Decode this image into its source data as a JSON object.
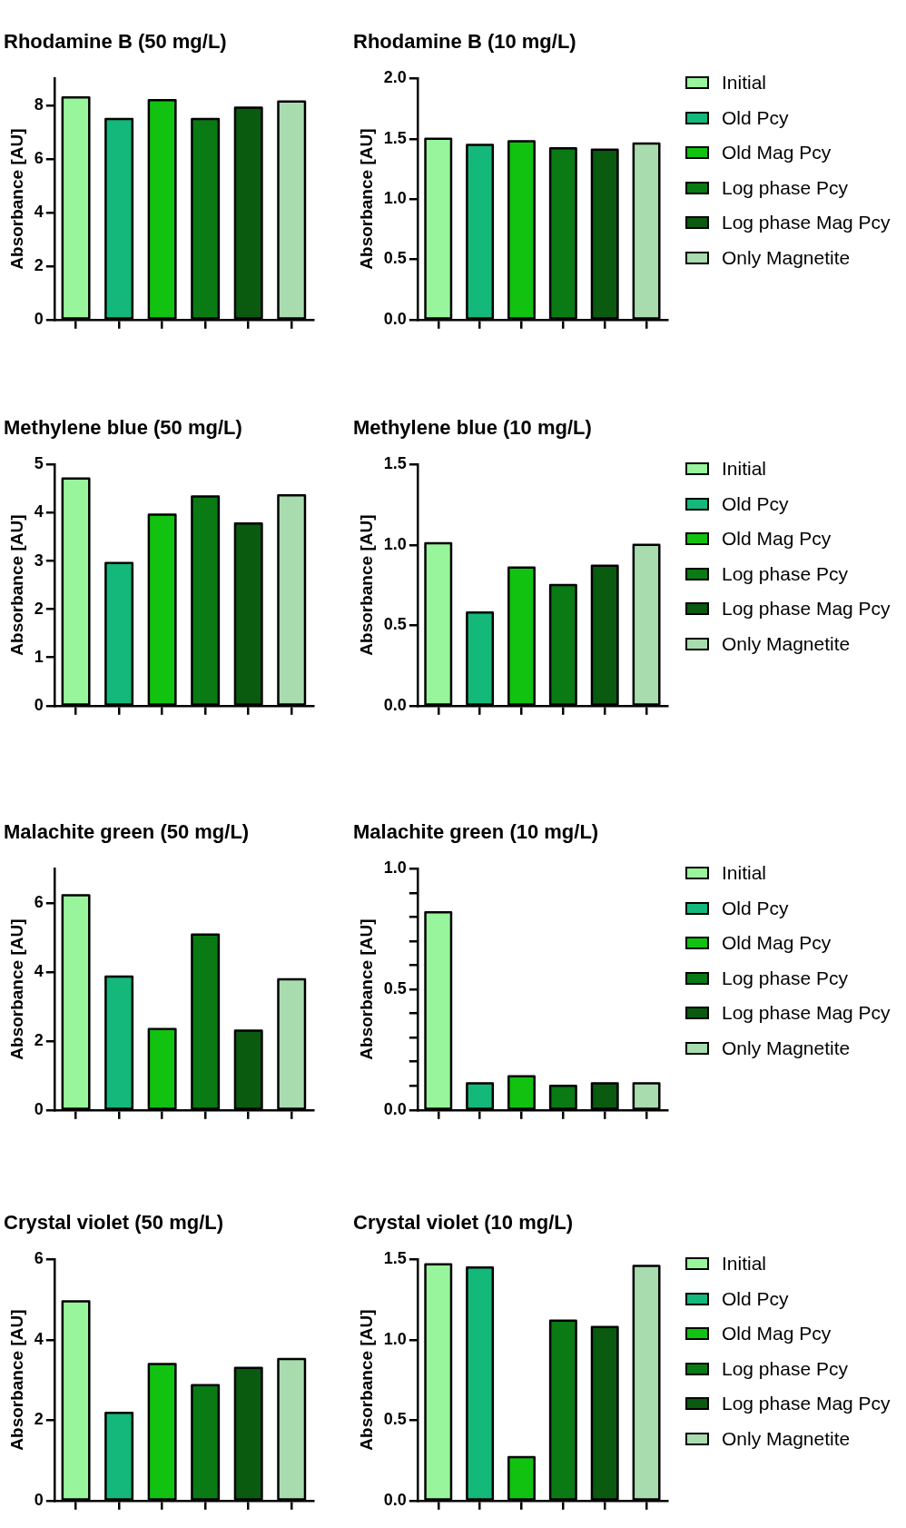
{
  "chart_data": [
    {
      "type": "bar",
      "title": "Rhodamine B (50 mg/L)",
      "ylabel": "Absorbance [AU]",
      "categories": [
        null,
        null,
        null,
        null,
        null,
        null
      ],
      "ylim": [
        0,
        9
      ],
      "yticks": [
        0,
        2,
        4,
        6,
        8
      ],
      "legend": false,
      "grid": false,
      "series": [
        {
          "color": "#99f59b",
          "values": [
            8.29,
            null,
            null,
            null,
            null,
            null
          ]
        },
        {
          "color": "#14b87a",
          "values": [
            null,
            7.49,
            null,
            null,
            null,
            null
          ]
        },
        {
          "color": "#11c211",
          "values": [
            null,
            null,
            8.19,
            null,
            null,
            null
          ]
        },
        {
          "color": "#0a7a14",
          "values": [
            null,
            null,
            null,
            7.49,
            null,
            null
          ]
        },
        {
          "color": "#0a5a10",
          "values": [
            null,
            null,
            null,
            null,
            7.91,
            null
          ]
        },
        {
          "color": "#a8dcae",
          "values": [
            null,
            null,
            null,
            null,
            null,
            8.14
          ]
        }
      ]
    },
    {
      "type": "bar",
      "title": "Rhodamine B (10 mg/L)",
      "ylabel": "Absorbance [AU]",
      "categories": [
        null,
        null,
        null,
        null,
        null,
        null
      ],
      "ylim": [
        0,
        2
      ],
      "yticks": [
        {
          "value": 0,
          "label": "0.0"
        },
        0.5,
        {
          "value": 1,
          "label": "1.0"
        },
        1.5,
        {
          "value": 2,
          "label": "2.0"
        }
      ],
      "legend": "right",
      "grid": false,
      "series": [
        {
          "name": "Initial",
          "color": "#99f59b",
          "values": [
            1.5,
            null,
            null,
            null,
            null,
            null
          ]
        },
        {
          "name": "Old Pcy",
          "color": "#14b87a",
          "values": [
            null,
            1.45,
            null,
            null,
            null,
            null
          ]
        },
        {
          "name": "Old Mag Pcy",
          "color": "#11c211",
          "values": [
            null,
            null,
            1.48,
            null,
            null,
            null
          ]
        },
        {
          "name": "Log phase Pcy",
          "color": "#0a7a14",
          "values": [
            null,
            null,
            null,
            1.42,
            null,
            null
          ]
        },
        {
          "name": "Log phase Mag Pcy",
          "color": "#0a5a10",
          "values": [
            null,
            null,
            null,
            null,
            1.41,
            null
          ]
        },
        {
          "name": "Only Magnetite",
          "color": "#a8dcae",
          "values": [
            null,
            null,
            null,
            null,
            null,
            1.46
          ]
        }
      ]
    },
    {
      "type": "bar",
      "title": "Methylene blue (50 mg/L)",
      "ylabel": "Absorbance [AU]",
      "categories": [
        null,
        null,
        null,
        null,
        null,
        null
      ],
      "ylim": [
        0,
        5
      ],
      "yticks": [
        0,
        1,
        2,
        3,
        4,
        5
      ],
      "legend": false,
      "grid": false,
      "series": [
        {
          "color": "#99f59b",
          "values": [
            4.71,
            null,
            null,
            null,
            null,
            null
          ]
        },
        {
          "color": "#14b87a",
          "values": [
            null,
            2.96,
            null,
            null,
            null,
            null
          ]
        },
        {
          "color": "#11c211",
          "values": [
            null,
            null,
            3.96,
            null,
            null,
            null
          ]
        },
        {
          "color": "#0a7a14",
          "values": [
            null,
            null,
            null,
            4.34,
            null,
            null
          ]
        },
        {
          "color": "#0a5a10",
          "values": [
            null,
            null,
            null,
            null,
            3.78,
            null
          ]
        },
        {
          "color": "#a8dcae",
          "values": [
            null,
            null,
            null,
            null,
            null,
            4.36
          ]
        }
      ]
    },
    {
      "type": "bar",
      "title": "Methylene blue (10 mg/L)",
      "ylabel": "Absorbance [AU]",
      "categories": [
        null,
        null,
        null,
        null,
        null,
        null
      ],
      "ylim": [
        0,
        1.5
      ],
      "yticks": [
        {
          "value": 0,
          "label": "0.0"
        },
        0.5,
        {
          "value": 1,
          "label": "1.0"
        },
        1.5
      ],
      "legend": "right",
      "grid": false,
      "series": [
        {
          "name": "Initial",
          "color": "#99f59b",
          "values": [
            1.01,
            null,
            null,
            null,
            null,
            null
          ]
        },
        {
          "name": "Old Pcy",
          "color": "#14b87a",
          "values": [
            null,
            0.58,
            null,
            null,
            null,
            null
          ]
        },
        {
          "name": "Old Mag Pcy",
          "color": "#11c211",
          "values": [
            null,
            null,
            0.86,
            null,
            null,
            null
          ]
        },
        {
          "name": "Log phase Pcy",
          "color": "#0a7a14",
          "values": [
            null,
            null,
            null,
            0.75,
            null,
            null
          ]
        },
        {
          "name": "Log phase Mag Pcy",
          "color": "#0a5a10",
          "values": [
            null,
            null,
            null,
            null,
            0.87,
            null
          ]
        },
        {
          "name": "Only Magnetite",
          "color": "#a8dcae",
          "values": [
            null,
            null,
            null,
            null,
            null,
            1.0
          ]
        }
      ]
    },
    {
      "type": "bar",
      "title": "Malachite green (50 mg/L)",
      "ylabel": "Absorbance [AU]",
      "categories": [
        null,
        null,
        null,
        null,
        null,
        null
      ],
      "ylim": [
        0,
        7
      ],
      "yticks": [
        0,
        2,
        4,
        6
      ],
      "legend": false,
      "grid": false,
      "series": [
        {
          "color": "#99f59b",
          "values": [
            6.23,
            null,
            null,
            null,
            null,
            null
          ]
        },
        {
          "color": "#14b87a",
          "values": [
            null,
            3.87,
            null,
            null,
            null,
            null
          ]
        },
        {
          "color": "#11c211",
          "values": [
            null,
            null,
            2.35,
            null,
            null,
            null
          ]
        },
        {
          "color": "#0a7a14",
          "values": [
            null,
            null,
            null,
            5.09,
            null,
            null
          ]
        },
        {
          "color": "#0a5a10",
          "values": [
            null,
            null,
            null,
            null,
            2.3,
            null
          ]
        },
        {
          "color": "#a8dcae",
          "values": [
            null,
            null,
            null,
            null,
            null,
            3.79
          ]
        }
      ]
    },
    {
      "type": "bar",
      "title": "Malachite green (10 mg/L)",
      "ylabel": "Absorbance [AU]",
      "categories": [
        null,
        null,
        null,
        null,
        null,
        null
      ],
      "ylim": [
        0,
        1
      ],
      "yticks": [
        {
          "value": 0,
          "label": "0.0"
        },
        {
          "value": 0.1,
          "label": null
        },
        {
          "value": 0.2,
          "label": null
        },
        {
          "value": 0.3,
          "label": null
        },
        {
          "value": 0.4,
          "label": null
        },
        0.5,
        {
          "value": 0.6,
          "label": null
        },
        {
          "value": 0.7,
          "label": null
        },
        {
          "value": 0.8,
          "label": null
        },
        {
          "value": 0.9,
          "label": null
        },
        {
          "value": 1,
          "label": "1.0"
        }
      ],
      "legend": "right",
      "grid": false,
      "series": [
        {
          "name": "Initial",
          "color": "#99f59b",
          "values": [
            0.82,
            null,
            null,
            null,
            null,
            null
          ]
        },
        {
          "name": "Old Pcy",
          "color": "#14b87a",
          "values": [
            null,
            0.11,
            null,
            null,
            null,
            null
          ]
        },
        {
          "name": "Old Mag Pcy",
          "color": "#11c211",
          "values": [
            null,
            null,
            0.14,
            null,
            null,
            null
          ]
        },
        {
          "name": "Log phase Pcy",
          "color": "#0a7a14",
          "values": [
            null,
            null,
            null,
            0.1,
            null,
            null
          ]
        },
        {
          "name": "Log phase Mag Pcy",
          "color": "#0a5a10",
          "values": [
            null,
            null,
            null,
            null,
            0.11,
            null
          ]
        },
        {
          "name": "Only Magnetite",
          "color": "#a8dcae",
          "values": [
            null,
            null,
            null,
            null,
            null,
            0.11
          ]
        }
      ]
    },
    {
      "type": "bar",
      "title": "Crystal violet (50 mg/L)",
      "ylabel": "Absorbance [AU]",
      "categories": [
        null,
        null,
        null,
        null,
        null,
        null
      ],
      "ylim": [
        0,
        6
      ],
      "yticks": [
        0,
        2,
        4,
        6
      ],
      "legend": false,
      "grid": false,
      "series": [
        {
          "color": "#99f59b",
          "values": [
            4.96,
            null,
            null,
            null,
            null,
            null
          ]
        },
        {
          "color": "#14b87a",
          "values": [
            null,
            2.18,
            null,
            null,
            null,
            null
          ]
        },
        {
          "color": "#11c211",
          "values": [
            null,
            null,
            3.4,
            null,
            null,
            null
          ]
        },
        {
          "color": "#0a7a14",
          "values": [
            null,
            null,
            null,
            2.87,
            null,
            null
          ]
        },
        {
          "color": "#0a5a10",
          "values": [
            null,
            null,
            null,
            null,
            3.3,
            null
          ]
        },
        {
          "color": "#a8dcae",
          "values": [
            null,
            null,
            null,
            null,
            null,
            3.52
          ]
        }
      ]
    },
    {
      "type": "bar",
      "title": "Crystal violet (10 mg/L)",
      "ylabel": "Absorbance [AU]",
      "categories": [
        null,
        null,
        null,
        null,
        null,
        null
      ],
      "ylim": [
        0,
        1.5
      ],
      "yticks": [
        {
          "value": 0,
          "label": "0.0"
        },
        0.5,
        {
          "value": 1,
          "label": "1.0"
        },
        1.5
      ],
      "legend": "right",
      "grid": false,
      "series": [
        {
          "name": "Initial",
          "color": "#99f59b",
          "values": [
            1.47,
            null,
            null,
            null,
            null,
            null
          ]
        },
        {
          "name": "Old Pcy",
          "color": "#14b87a",
          "values": [
            null,
            1.45,
            null,
            null,
            null,
            null
          ]
        },
        {
          "name": "Old Mag Pcy",
          "color": "#11c211",
          "values": [
            null,
            null,
            0.27,
            null,
            null,
            null
          ]
        },
        {
          "name": "Log phase Pcy",
          "color": "#0a7a14",
          "values": [
            null,
            null,
            null,
            1.12,
            null,
            null
          ]
        },
        {
          "name": "Log phase Mag Pcy",
          "color": "#0a5a10",
          "values": [
            null,
            null,
            null,
            null,
            1.08,
            null
          ]
        },
        {
          "name": "Only Magnetite",
          "color": "#a8dcae",
          "values": [
            null,
            null,
            null,
            null,
            null,
            1.46
          ]
        }
      ]
    }
  ]
}
